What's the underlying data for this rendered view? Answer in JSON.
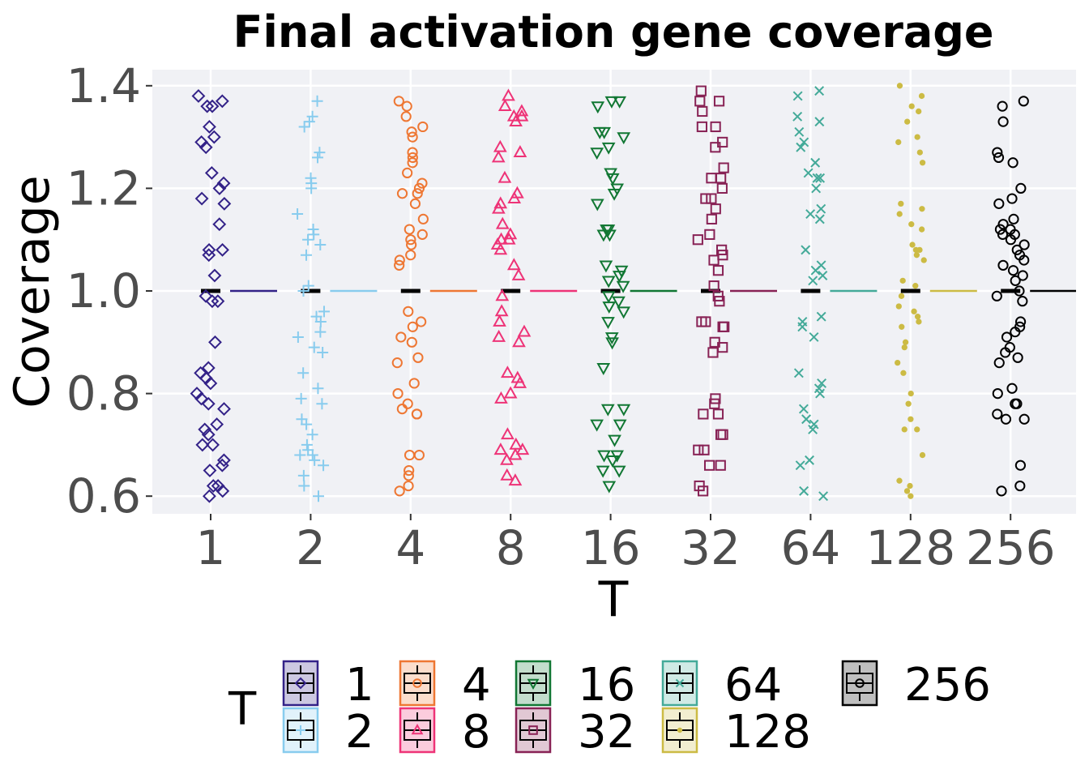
{
  "chart_data": {
    "type": "scatter",
    "title": "Final activation gene coverage",
    "xlabel": "T",
    "ylabel": "Coverage",
    "categories": [
      "1",
      "2",
      "4",
      "8",
      "16",
      "32",
      "64",
      "128",
      "256"
    ],
    "y_ticks": [
      "0.6",
      "0.8",
      "1.0",
      "1.2",
      "1.4"
    ],
    "ylim": [
      0.56,
      1.42
    ],
    "grid": true,
    "legend_title": "T",
    "legend_position": "bottom",
    "median_value": 1.0,
    "series": [
      {
        "name": "1",
        "color": "#332288",
        "shape": "diamond",
        "values": [
          1.37,
          1.38,
          1.36,
          1.36,
          1.32,
          1.3,
          1.29,
          1.28,
          1.23,
          1.21,
          1.2,
          1.18,
          1.17,
          1.13,
          1.08,
          1.08,
          1.07,
          1.03,
          0.99,
          0.98,
          0.98,
          0.9,
          0.85,
          0.84,
          0.83,
          0.82,
          0.8,
          0.79,
          0.78,
          0.77,
          0.74,
          0.73,
          0.72,
          0.7,
          0.7,
          0.67,
          0.66,
          0.65,
          0.62,
          0.62,
          0.61,
          0.6
        ]
      },
      {
        "name": "2",
        "color": "#88CCEE",
        "shape": "plus",
        "values": [
          1.37,
          1.34,
          1.33,
          1.32,
          1.27,
          1.26,
          1.22,
          1.21,
          1.2,
          1.15,
          1.12,
          1.11,
          1.1,
          1.09,
          1.07,
          1.01,
          1.0,
          0.96,
          0.95,
          0.94,
          0.92,
          0.91,
          0.89,
          0.88,
          0.84,
          0.81,
          0.79,
          0.78,
          0.75,
          0.74,
          0.72,
          0.7,
          0.69,
          0.68,
          0.68,
          0.67,
          0.66,
          0.64,
          0.62,
          0.6
        ]
      },
      {
        "name": "4",
        "color": "#EE7733",
        "shape": "circle",
        "values": [
          1.37,
          1.36,
          1.34,
          1.32,
          1.31,
          1.3,
          1.27,
          1.26,
          1.25,
          1.23,
          1.21,
          1.2,
          1.19,
          1.19,
          1.17,
          1.14,
          1.12,
          1.11,
          1.1,
          1.09,
          1.07,
          1.06,
          1.05,
          0.96,
          0.94,
          0.93,
          0.91,
          0.9,
          0.87,
          0.86,
          0.82,
          0.8,
          0.78,
          0.77,
          0.76,
          0.76,
          0.68,
          0.68,
          0.65,
          0.64,
          0.62,
          0.61
        ]
      },
      {
        "name": "8",
        "color": "#EE3377",
        "shape": "triangle",
        "values": [
          1.38,
          1.36,
          1.35,
          1.34,
          1.34,
          1.33,
          1.28,
          1.27,
          1.26,
          1.22,
          1.19,
          1.18,
          1.17,
          1.16,
          1.13,
          1.11,
          1.1,
          1.1,
          1.09,
          1.08,
          1.05,
          1.03,
          0.99,
          0.96,
          0.94,
          0.92,
          0.91,
          0.9,
          0.84,
          0.83,
          0.82,
          0.8,
          0.79,
          0.72,
          0.7,
          0.69,
          0.69,
          0.68,
          0.67,
          0.64,
          0.63
        ]
      },
      {
        "name": "16",
        "color": "#117733",
        "shape": "triangle-down",
        "values": [
          1.37,
          1.37,
          1.36,
          1.31,
          1.31,
          1.3,
          1.28,
          1.27,
          1.23,
          1.22,
          1.2,
          1.19,
          1.17,
          1.12,
          1.12,
          1.11,
          1.11,
          1.05,
          1.04,
          1.03,
          1.02,
          1.01,
          0.99,
          0.98,
          0.97,
          0.96,
          0.94,
          0.91,
          0.9,
          0.85,
          0.77,
          0.77,
          0.74,
          0.74,
          0.71,
          0.68,
          0.68,
          0.67,
          0.65,
          0.65,
          0.62
        ]
      },
      {
        "name": "32",
        "color": "#882255",
        "shape": "square",
        "values": [
          1.39,
          1.37,
          1.37,
          1.35,
          1.32,
          1.32,
          1.29,
          1.28,
          1.24,
          1.22,
          1.22,
          1.2,
          1.18,
          1.18,
          1.16,
          1.14,
          1.11,
          1.1,
          1.08,
          1.07,
          1.06,
          1.04,
          1.01,
          0.99,
          0.98,
          0.94,
          0.94,
          0.93,
          0.93,
          0.9,
          0.89,
          0.88,
          0.79,
          0.78,
          0.76,
          0.76,
          0.72,
          0.72,
          0.69,
          0.69,
          0.66,
          0.66,
          0.62,
          0.61
        ]
      },
      {
        "name": "64",
        "color": "#44AA99",
        "shape": "cross",
        "values": [
          1.39,
          1.38,
          1.34,
          1.33,
          1.31,
          1.29,
          1.28,
          1.25,
          1.23,
          1.22,
          1.22,
          1.2,
          1.16,
          1.15,
          1.14,
          1.08,
          1.05,
          1.04,
          1.03,
          1.02,
          0.95,
          0.94,
          0.93,
          0.91,
          0.84,
          0.82,
          0.81,
          0.8,
          0.77,
          0.75,
          0.74,
          0.73,
          0.67,
          0.66,
          0.61,
          0.6
        ]
      },
      {
        "name": "128",
        "color": "#CCBB44",
        "shape": "dot",
        "values": [
          1.4,
          1.38,
          1.36,
          1.35,
          1.33,
          1.3,
          1.29,
          1.27,
          1.25,
          1.17,
          1.16,
          1.15,
          1.13,
          1.12,
          1.09,
          1.08,
          1.08,
          1.07,
          1.06,
          1.02,
          1.01,
          0.99,
          0.97,
          0.96,
          0.95,
          0.94,
          0.93,
          0.9,
          0.89,
          0.86,
          0.84,
          0.8,
          0.78,
          0.75,
          0.73,
          0.73,
          0.68,
          0.63,
          0.62,
          0.61,
          0.6
        ]
      },
      {
        "name": "256",
        "color": "#000000",
        "shape": "circle",
        "values": [
          1.37,
          1.36,
          1.33,
          1.27,
          1.26,
          1.25,
          1.2,
          1.18,
          1.17,
          1.14,
          1.13,
          1.12,
          1.12,
          1.11,
          1.11,
          1.1,
          1.09,
          1.08,
          1.07,
          1.06,
          1.05,
          1.04,
          1.03,
          1.02,
          1.0,
          0.99,
          0.98,
          0.94,
          0.93,
          0.92,
          0.91,
          0.89,
          0.88,
          0.87,
          0.86,
          0.81,
          0.8,
          0.78,
          0.78,
          0.76,
          0.75,
          0.75,
          0.66,
          0.62,
          0.61
        ]
      }
    ]
  }
}
